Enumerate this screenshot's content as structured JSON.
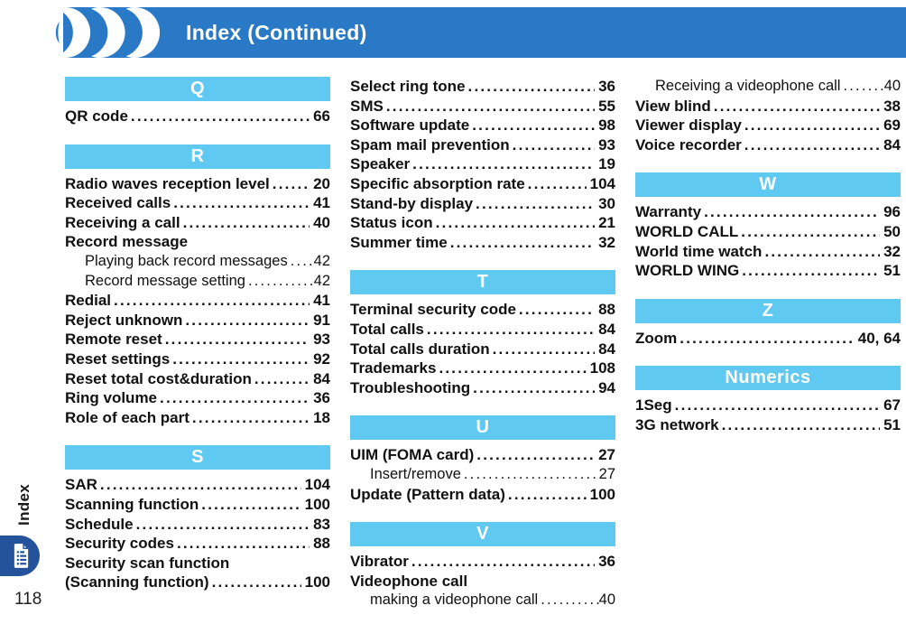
{
  "header": {
    "title": "Index (Continued)"
  },
  "sidebar": {
    "label": "Index",
    "page_number": "118",
    "icon": "document-list-icon"
  },
  "colors": {
    "header_blue": "#2A79C7",
    "section_blue": "#5FC9F1",
    "tab_blue": "#24539B",
    "text": "#111111"
  },
  "columns": [
    {
      "blocks": [
        {
          "section": "Q",
          "entries": [
            {
              "label": "QR code",
              "page": "66",
              "style": "main"
            }
          ]
        },
        {
          "section": "R",
          "entries": [
            {
              "label": "Radio waves reception level",
              "page": "20",
              "style": "main"
            },
            {
              "label": "Received calls",
              "page": "41",
              "style": "main"
            },
            {
              "label": "Receiving a call",
              "page": "40",
              "style": "main"
            },
            {
              "label": "Record message",
              "page": "",
              "style": "main-nopage"
            },
            {
              "label": "Playing back record messages",
              "page": "42",
              "style": "sub"
            },
            {
              "label": "Record message setting",
              "page": "42",
              "style": "sub"
            },
            {
              "label": "Redial",
              "page": "41",
              "style": "main"
            },
            {
              "label": "Reject unknown",
              "page": "91",
              "style": "main"
            },
            {
              "label": "Remote reset",
              "page": "93",
              "style": "main"
            },
            {
              "label": "Reset settings",
              "page": "92",
              "style": "main"
            },
            {
              "label": "Reset total cost&duration",
              "page": "84",
              "style": "main"
            },
            {
              "label": "Ring volume",
              "page": "36",
              "style": "main"
            },
            {
              "label": "Role of each part",
              "page": "18",
              "style": "main"
            }
          ]
        },
        {
          "section": "S",
          "entries": [
            {
              "label": "SAR",
              "page": "104",
              "style": "main"
            },
            {
              "label": "Scanning function",
              "page": "100",
              "style": "main"
            },
            {
              "label": "Schedule",
              "page": "83",
              "style": "main"
            },
            {
              "label": "Security codes",
              "page": "88",
              "style": "main"
            },
            {
              "label": "Security scan function",
              "page": "",
              "style": "main-nopage"
            },
            {
              "label": "(Scanning function)",
              "page": "100",
              "style": "main"
            }
          ]
        }
      ]
    },
    {
      "blocks": [
        {
          "section": "",
          "entries": [
            {
              "label": "Select ring tone",
              "page": "36",
              "style": "main"
            },
            {
              "label": "SMS",
              "page": "55",
              "style": "main"
            },
            {
              "label": "Software update",
              "page": "98",
              "style": "main"
            },
            {
              "label": "Spam mail prevention",
              "page": "93",
              "style": "main"
            },
            {
              "label": "Speaker",
              "page": "19",
              "style": "main"
            },
            {
              "label": "Specific absorption rate",
              "page": "104",
              "style": "main"
            },
            {
              "label": "Stand-by display",
              "page": "30",
              "style": "main"
            },
            {
              "label": "Status icon",
              "page": "21",
              "style": "main"
            },
            {
              "label": "Summer time",
              "page": "32",
              "style": "main"
            }
          ]
        },
        {
          "section": "T",
          "entries": [
            {
              "label": "Terminal security code",
              "page": "88",
              "style": "main"
            },
            {
              "label": "Total calls",
              "page": "84",
              "style": "main"
            },
            {
              "label": "Total calls duration",
              "page": "84",
              "style": "main"
            },
            {
              "label": "Trademarks",
              "page": "108",
              "style": "main"
            },
            {
              "label": "Troubleshooting",
              "page": "94",
              "style": "main"
            }
          ]
        },
        {
          "section": "U",
          "entries": [
            {
              "label": "UIM (FOMA card)",
              "page": "27",
              "style": "main"
            },
            {
              "label": "Insert/remove",
              "page": "27",
              "style": "sub"
            },
            {
              "label": "Update (Pattern data)",
              "page": "100",
              "style": "main"
            }
          ]
        },
        {
          "section": "V",
          "entries": [
            {
              "label": "Vibrator",
              "page": "36",
              "style": "main"
            },
            {
              "label": "Videophone call",
              "page": "",
              "style": "main-nopage"
            },
            {
              "label": "making a videophone call",
              "page": "40",
              "style": "sub"
            }
          ]
        }
      ]
    },
    {
      "blocks": [
        {
          "section": "",
          "entries": [
            {
              "label": "Receiving a videophone call",
              "page": "40",
              "style": "sub"
            },
            {
              "label": "View blind",
              "page": "38",
              "style": "main"
            },
            {
              "label": "Viewer display",
              "page": "69",
              "style": "main"
            },
            {
              "label": "Voice recorder",
              "page": "84",
              "style": "main"
            }
          ]
        },
        {
          "section": "W",
          "entries": [
            {
              "label": "Warranty",
              "page": "96",
              "style": "main"
            },
            {
              "label": "WORLD CALL",
              "page": "50",
              "style": "main"
            },
            {
              "label": "World time watch",
              "page": "32",
              "style": "main"
            },
            {
              "label": "WORLD WING",
              "page": "51",
              "style": "main"
            }
          ]
        },
        {
          "section": "Z",
          "entries": [
            {
              "label": "Zoom",
              "page": "40, 64",
              "style": "main"
            }
          ]
        },
        {
          "section": "Numerics",
          "entries": [
            {
              "label": "1Seg",
              "page": "67",
              "style": "main"
            },
            {
              "label": "3G network",
              "page": "51",
              "style": "main"
            }
          ]
        }
      ]
    }
  ]
}
